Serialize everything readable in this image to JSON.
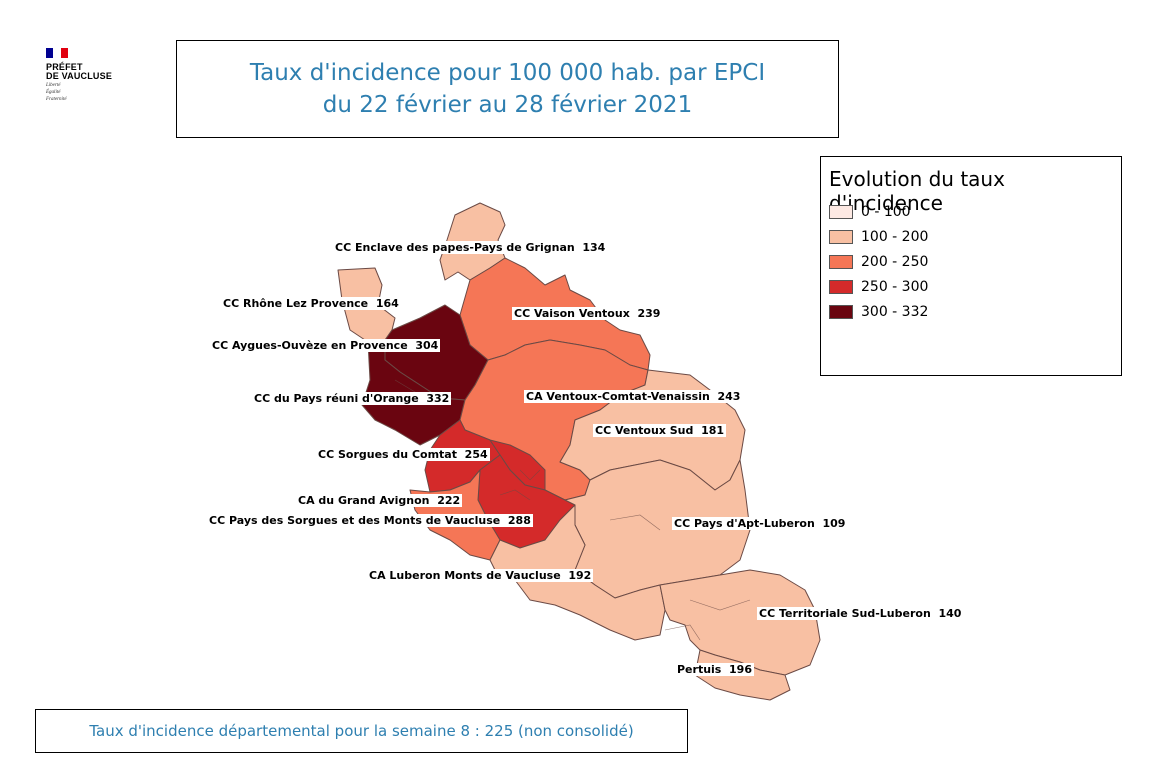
{
  "logo": {
    "line1": "PRÉFET",
    "line2": "DE VAUCLUSE",
    "motto1": "Liberté",
    "motto2": "Égalité",
    "motto3": "Fraternité",
    "flag_colors": [
      "#000091",
      "#ffffff",
      "#e1000f"
    ]
  },
  "title": {
    "line1": "Taux d'incidence pour 100 000 hab. par EPCI",
    "line2": "du 22 février au 28 février 2021"
  },
  "legend": {
    "title": "Evolution du taux d'incidence",
    "classes": [
      {
        "label": "0 - 100",
        "color": "#fde9e3"
      },
      {
        "label": "100 - 200",
        "color": "#f8c0a3"
      },
      {
        "label": "200 - 250",
        "color": "#f57656"
      },
      {
        "label": "250 - 300",
        "color": "#d42a2a"
      },
      {
        "label": "300 - 332",
        "color": "#6a0510"
      }
    ]
  },
  "epci": [
    {
      "name": "CC Enclave des papes-Pays de Grignan",
      "value": 134
    },
    {
      "name": "CC Rhône Lez Provence",
      "value": 164
    },
    {
      "name": "CC Vaison Ventoux",
      "value": 239
    },
    {
      "name": "CC Aygues-Ouvèze en Provence",
      "value": 304
    },
    {
      "name": "CC du Pays réuni d'Orange",
      "value": 332
    },
    {
      "name": "CA Ventoux-Comtat-Venaissin",
      "value": 243
    },
    {
      "name": "CC Ventoux Sud",
      "value": 181
    },
    {
      "name": "CC Sorgues du Comtat",
      "value": 254
    },
    {
      "name": "CA du Grand Avignon",
      "value": 222
    },
    {
      "name": "CC Pays des Sorgues et des Monts de Vaucluse",
      "value": 288
    },
    {
      "name": "CC Pays d'Apt-Luberon",
      "value": 109
    },
    {
      "name": "CA Luberon Monts de Vaucluse",
      "value": 192
    },
    {
      "name": "CC Territoriale Sud-Luberon",
      "value": 140
    },
    {
      "name": "Pertuis",
      "value": 196
    }
  ],
  "footer": "Taux d'incidence  départemental pour la semaine 8 : 225  (non consolidé)"
}
